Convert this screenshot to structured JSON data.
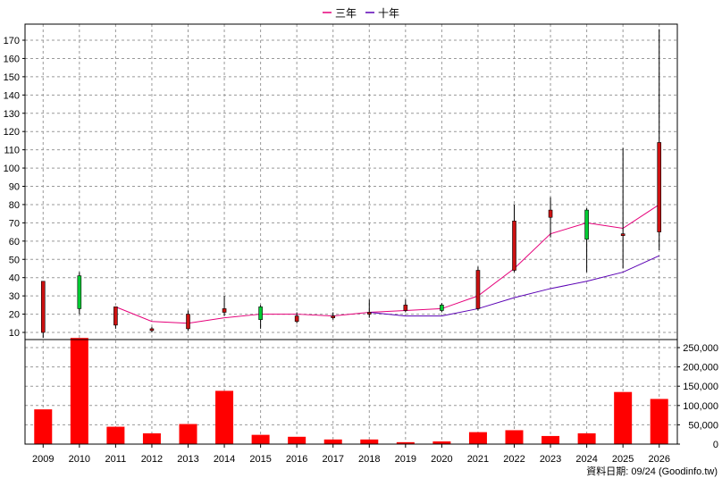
{
  "chart_data": {
    "type": "candlestick",
    "legend": [
      {
        "name": "三年",
        "color": "#e6007a"
      },
      {
        "name": "十年",
        "color": "#5a00b4"
      }
    ],
    "x_labels": [
      "2009",
      "2010",
      "2011",
      "2012",
      "2013",
      "2014",
      "2015",
      "2016",
      "2017",
      "2018",
      "2019",
      "2020",
      "2021",
      "2022",
      "2023",
      "2024",
      "2025",
      "2026"
    ],
    "price_axis": {
      "ticks": [
        10,
        20,
        30,
        40,
        50,
        60,
        70,
        80,
        90,
        100,
        110,
        120,
        130,
        140,
        150,
        160,
        170
      ],
      "range": [
        0,
        175
      ]
    },
    "volume_axis": {
      "ticks": [
        "0",
        "50,000",
        "100,000",
        "150,000",
        "200,000",
        "250,000"
      ],
      "values": [
        0,
        50000,
        100000,
        150000,
        200000,
        250000
      ],
      "range": [
        0,
        280000
      ]
    },
    "candles": [
      {
        "year": "2009",
        "open": 38,
        "close": 10,
        "high": 38,
        "low": 7
      },
      {
        "year": "2010",
        "open": 23,
        "close": 41,
        "high": 43,
        "low": 20
      },
      {
        "year": "2011",
        "open": 24,
        "close": 14,
        "high": 24,
        "low": 12
      },
      {
        "year": "2012",
        "open": 12,
        "close": 11,
        "high": 13,
        "low": 10
      },
      {
        "year": "2013",
        "open": 20,
        "close": 12,
        "high": 22,
        "low": 11
      },
      {
        "year": "2014",
        "open": 23,
        "close": 21,
        "high": 30,
        "low": 19
      },
      {
        "year": "2015",
        "open": 17,
        "close": 24,
        "high": 25,
        "low": 12
      },
      {
        "year": "2016",
        "open": 19,
        "close": 16,
        "high": 21,
        "low": 15
      },
      {
        "year": "2017",
        "open": 19,
        "close": 18,
        "high": 21,
        "low": 17
      },
      {
        "year": "2018",
        "open": 21,
        "close": 20,
        "high": 28,
        "low": 18
      },
      {
        "year": "2019",
        "open": 25,
        "close": 22,
        "high": 28,
        "low": 21
      },
      {
        "year": "2020",
        "open": 22,
        "close": 25,
        "high": 26,
        "low": 21
      },
      {
        "year": "2021",
        "open": 44,
        "close": 23,
        "high": 46,
        "low": 22
      },
      {
        "year": "2022",
        "open": 71,
        "close": 44,
        "high": 80,
        "low": 43
      },
      {
        "year": "2023",
        "open": 77,
        "close": 73,
        "high": 84,
        "low": 62
      },
      {
        "year": "2024",
        "open": 61,
        "close": 77,
        "high": 78,
        "low": 43
      },
      {
        "year": "2025",
        "open": 64,
        "close": 63,
        "high": 111,
        "low": 45
      },
      {
        "year": "2026",
        "open": 114,
        "close": 65,
        "high": 176,
        "low": 55
      }
    ],
    "ma_three_year": [
      {
        "year": "2011",
        "value": 24
      },
      {
        "year": "2012",
        "value": 16
      },
      {
        "year": "2013",
        "value": 15
      },
      {
        "year": "2014",
        "value": 18
      },
      {
        "year": "2015",
        "value": 20
      },
      {
        "year": "2016",
        "value": 20
      },
      {
        "year": "2017",
        "value": 19
      },
      {
        "year": "2018",
        "value": 21
      },
      {
        "year": "2019",
        "value": 22
      },
      {
        "year": "2020",
        "value": 23
      },
      {
        "year": "2021",
        "value": 30
      },
      {
        "year": "2022",
        "value": 45
      },
      {
        "year": "2023",
        "value": 64
      },
      {
        "year": "2024",
        "value": 70
      },
      {
        "year": "2025",
        "value": 67
      },
      {
        "year": "2026",
        "value": 80
      }
    ],
    "ma_ten_year": [
      {
        "year": "2018",
        "value": 21
      },
      {
        "year": "2019",
        "value": 19
      },
      {
        "year": "2020",
        "value": 19
      },
      {
        "year": "2021",
        "value": 23
      },
      {
        "year": "2022",
        "value": 29
      },
      {
        "year": "2023",
        "value": 34
      },
      {
        "year": "2024",
        "value": 38
      },
      {
        "year": "2025",
        "value": 43
      },
      {
        "year": "2026",
        "value": 52
      }
    ],
    "volume": [
      {
        "year": "2009",
        "value": 90000
      },
      {
        "year": "2010",
        "value": 275000
      },
      {
        "year": "2011",
        "value": 45000
      },
      {
        "year": "2012",
        "value": 28000
      },
      {
        "year": "2013",
        "value": 52000
      },
      {
        "year": "2014",
        "value": 138000
      },
      {
        "year": "2015",
        "value": 24000
      },
      {
        "year": "2016",
        "value": 19000
      },
      {
        "year": "2017",
        "value": 12000
      },
      {
        "year": "2018",
        "value": 12000
      },
      {
        "year": "2019",
        "value": 5000
      },
      {
        "year": "2020",
        "value": 7000
      },
      {
        "year": "2021",
        "value": 31000
      },
      {
        "year": "2022",
        "value": 36000
      },
      {
        "year": "2023",
        "value": 21000
      },
      {
        "year": "2024",
        "value": 28000
      },
      {
        "year": "2025",
        "value": 135000
      },
      {
        "year": "2026",
        "value": 117000
      }
    ],
    "colors": {
      "up": "#00cc33",
      "down": "#cc1111",
      "volume": "#ff0000",
      "grid": "#999999"
    },
    "grid": true,
    "legend_position": "top-center",
    "footer": "資料日期: 09/24  (Goodinfo.tw)"
  }
}
